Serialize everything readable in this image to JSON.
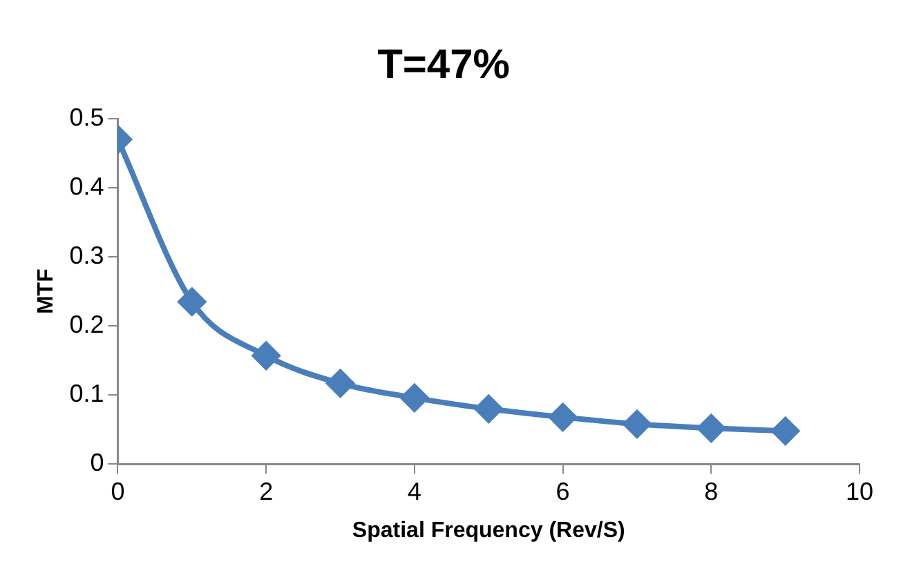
{
  "chart_data": {
    "type": "line",
    "title": "T=47%",
    "xlabel": "Spatial Frequency (Rev/S)",
    "ylabel": "MTF",
    "x": [
      0,
      1,
      2,
      3,
      4,
      5,
      6,
      7,
      8,
      9
    ],
    "series": [
      {
        "color": "#4a7ebb",
        "values": [
          0.47,
          0.235,
          0.157,
          0.117,
          0.096,
          0.08,
          0.068,
          0.058,
          0.052,
          0.048
        ]
      }
    ],
    "xlim": [
      0,
      10
    ],
    "xticks": [
      0,
      2,
      4,
      6,
      8,
      10
    ],
    "ylim": [
      0,
      0.5
    ],
    "yticks": [
      0,
      0.1,
      0.2,
      0.3,
      0.4,
      0.5
    ],
    "grid": false,
    "legend": false,
    "marker": "diamond",
    "line_style": "solid"
  }
}
